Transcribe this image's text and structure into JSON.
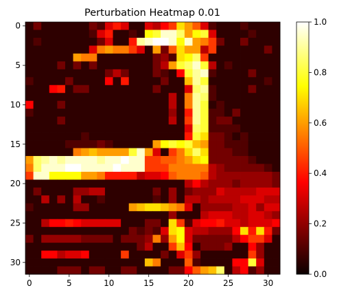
{
  "chart_data": {
    "type": "heatmap",
    "title": "Perturbation Heatmap 0.01",
    "xlabel": "",
    "ylabel": "",
    "rows": 32,
    "cols": 32,
    "x_ticks": [
      0,
      5,
      10,
      15,
      20,
      25,
      30
    ],
    "y_ticks": [
      0,
      5,
      10,
      15,
      20,
      25,
      30
    ],
    "y_axis_direction": "top-to-bottom",
    "colormap": "hot",
    "value_range": [
      0.0,
      1.0
    ],
    "colorbar": {
      "position": "right",
      "ticks": [
        0.0,
        0.2,
        0.4,
        0.6,
        0.8,
        1.0
      ],
      "tick_labels": [
        "0.0",
        "0.2",
        "0.4",
        "0.6",
        "0.8",
        "1.0"
      ]
    },
    "values": [
      [
        0.05,
        0.15,
        0.05,
        0.05,
        0.05,
        0.05,
        0.05,
        0.05,
        0.15,
        0.1,
        0.3,
        0.4,
        0.3,
        0.05,
        0.05,
        0.3,
        0.25,
        0.35,
        0.45,
        0.7,
        0.6,
        0.5,
        0.3,
        0.1,
        0.05,
        0.05,
        0.05,
        0.1,
        0.05,
        0.05,
        0.05,
        0.05
      ],
      [
        0.05,
        0.05,
        0.05,
        0.05,
        0.05,
        0.05,
        0.05,
        0.05,
        0.1,
        0.3,
        0.4,
        0.05,
        0.05,
        0.1,
        0.05,
        0.75,
        0.8,
        0.95,
        0.95,
        0.85,
        0.6,
        0.75,
        0.8,
        0.3,
        0.05,
        0.05,
        0.05,
        0.05,
        0.1,
        0.05,
        0.05,
        0.05
      ],
      [
        0.05,
        0.1,
        0.05,
        0.05,
        0.05,
        0.05,
        0.05,
        0.05,
        0.05,
        0.15,
        0.3,
        0.05,
        0.05,
        0.4,
        0.9,
        0.95,
        1.0,
        1.0,
        0.95,
        0.75,
        0.95,
        0.6,
        0.55,
        0.45,
        0.15,
        0.05,
        0.05,
        0.15,
        0.05,
        0.05,
        0.05,
        0.05
      ],
      [
        0.05,
        0.05,
        0.05,
        0.05,
        0.05,
        0.05,
        0.05,
        0.05,
        0.3,
        0.55,
        0.6,
        0.55,
        0.55,
        0.45,
        0.3,
        0.05,
        0.6,
        0.15,
        0.5,
        0.7,
        0.6,
        0.6,
        0.25,
        0.45,
        0.05,
        0.05,
        0.05,
        0.05,
        0.05,
        0.05,
        0.15,
        0.05
      ],
      [
        0.05,
        0.05,
        0.05,
        0.05,
        0.05,
        0.05,
        0.6,
        0.55,
        0.55,
        0.05,
        0.05,
        0.05,
        0.05,
        0.05,
        0.05,
        0.05,
        0.15,
        0.2,
        0.1,
        0.7,
        0.75,
        0.85,
        0.45,
        0.05,
        0.05,
        0.05,
        0.05,
        0.05,
        0.05,
        0.05,
        0.05,
        0.05
      ],
      [
        0.05,
        0.05,
        0.05,
        0.05,
        0.15,
        0.05,
        0.15,
        0.05,
        0.15,
        0.05,
        0.05,
        0.05,
        0.05,
        0.05,
        0.05,
        0.05,
        0.15,
        0.25,
        0.6,
        0.8,
        0.85,
        0.95,
        0.8,
        0.25,
        0.05,
        0.1,
        0.05,
        0.05,
        0.05,
        0.05,
        0.05,
        0.05
      ],
      [
        0.05,
        0.05,
        0.05,
        0.05,
        0.05,
        0.05,
        0.05,
        0.05,
        0.05,
        0.05,
        0.15,
        0.25,
        0.15,
        0.05,
        0.05,
        0.05,
        0.15,
        0.1,
        0.05,
        0.35,
        0.8,
        0.9,
        0.95,
        0.1,
        0.05,
        0.05,
        0.05,
        0.05,
        0.15,
        0.05,
        0.05,
        0.05
      ],
      [
        0.1,
        0.05,
        0.05,
        0.05,
        0.05,
        0.15,
        0.05,
        0.05,
        0.05,
        0.05,
        0.35,
        0.05,
        0.4,
        0.05,
        0.05,
        0.05,
        0.05,
        0.15,
        0.05,
        0.05,
        0.65,
        0.9,
        0.8,
        0.05,
        0.05,
        0.05,
        0.05,
        0.05,
        0.05,
        0.05,
        0.1,
        0.05
      ],
      [
        0.05,
        0.05,
        0.05,
        0.35,
        0.4,
        0.05,
        0.15,
        0.15,
        0.05,
        0.05,
        0.05,
        0.05,
        0.05,
        0.05,
        0.05,
        0.05,
        0.15,
        0.05,
        0.05,
        0.05,
        0.3,
        0.85,
        0.9,
        0.1,
        0.05,
        0.05,
        0.05,
        0.05,
        0.15,
        0.05,
        0.05,
        0.05
      ],
      [
        0.05,
        0.05,
        0.05,
        0.05,
        0.05,
        0.05,
        0.05,
        0.05,
        0.05,
        0.05,
        0.05,
        0.05,
        0.05,
        0.05,
        0.05,
        0.05,
        0.05,
        0.05,
        0.25,
        0.05,
        0.55,
        0.9,
        0.85,
        0.1,
        0.05,
        0.05,
        0.05,
        0.05,
        0.05,
        0.05,
        0.05,
        0.05
      ],
      [
        0.35,
        0.05,
        0.05,
        0.05,
        0.15,
        0.05,
        0.05,
        0.05,
        0.05,
        0.05,
        0.05,
        0.05,
        0.05,
        0.05,
        0.05,
        0.05,
        0.05,
        0.05,
        0.25,
        0.05,
        0.55,
        0.9,
        0.8,
        0.05,
        0.1,
        0.05,
        0.05,
        0.05,
        0.05,
        0.05,
        0.05,
        0.05
      ],
      [
        0.1,
        0.05,
        0.05,
        0.05,
        0.05,
        0.05,
        0.05,
        0.05,
        0.05,
        0.05,
        0.05,
        0.05,
        0.05,
        0.05,
        0.05,
        0.05,
        0.05,
        0.05,
        0.2,
        0.05,
        0.4,
        0.9,
        0.8,
        0.1,
        0.1,
        0.05,
        0.15,
        0.05,
        0.05,
        0.05,
        0.05,
        0.05
      ],
      [
        0.05,
        0.05,
        0.05,
        0.05,
        0.15,
        0.05,
        0.05,
        0.05,
        0.05,
        0.05,
        0.05,
        0.05,
        0.05,
        0.05,
        0.05,
        0.05,
        0.05,
        0.05,
        0.25,
        0.05,
        0.45,
        0.9,
        0.8,
        0.1,
        0.15,
        0.15,
        0.05,
        0.05,
        0.05,
        0.05,
        0.05,
        0.05
      ],
      [
        0.05,
        0.05,
        0.05,
        0.05,
        0.05,
        0.05,
        0.05,
        0.05,
        0.05,
        0.05,
        0.05,
        0.05,
        0.05,
        0.05,
        0.05,
        0.05,
        0.05,
        0.05,
        0.05,
        0.05,
        0.3,
        0.85,
        0.8,
        0.1,
        0.1,
        0.1,
        0.1,
        0.05,
        0.05,
        0.05,
        0.05,
        0.05
      ],
      [
        0.05,
        0.05,
        0.05,
        0.05,
        0.05,
        0.05,
        0.05,
        0.1,
        0.05,
        0.05,
        0.05,
        0.05,
        0.05,
        0.05,
        0.05,
        0.05,
        0.05,
        0.05,
        0.05,
        0.05,
        0.4,
        0.8,
        0.7,
        0.15,
        0.15,
        0.1,
        0.05,
        0.1,
        0.05,
        0.05,
        0.05,
        0.05
      ],
      [
        0.05,
        0.05,
        0.05,
        0.05,
        0.05,
        0.1,
        0.1,
        0.1,
        0.1,
        0.15,
        0.1,
        0.05,
        0.05,
        0.05,
        0.05,
        0.05,
        0.6,
        0.75,
        0.8,
        0.75,
        0.8,
        0.65,
        0.6,
        0.15,
        0.15,
        0.1,
        0.1,
        0.1,
        0.05,
        0.05,
        0.05,
        0.05
      ],
      [
        0.05,
        0.05,
        0.05,
        0.05,
        0.05,
        0.05,
        0.55,
        0.6,
        0.65,
        0.6,
        0.6,
        0.6,
        0.6,
        0.8,
        0.95,
        0.6,
        0.3,
        0.05,
        0.45,
        0.55,
        0.7,
        0.85,
        0.7,
        0.15,
        0.15,
        0.15,
        0.1,
        0.1,
        0.05,
        0.05,
        0.05,
        0.05
      ],
      [
        0.6,
        0.85,
        0.9,
        0.95,
        0.9,
        0.95,
        0.95,
        0.95,
        0.95,
        0.9,
        0.95,
        0.95,
        1.0,
        0.95,
        0.95,
        0.45,
        0.45,
        0.5,
        0.5,
        0.55,
        0.6,
        0.7,
        0.75,
        0.15,
        0.15,
        0.15,
        0.15,
        0.15,
        0.1,
        0.05,
        0.05,
        0.05
      ],
      [
        0.55,
        0.85,
        0.95,
        0.95,
        0.95,
        1.0,
        1.0,
        0.95,
        0.95,
        0.95,
        0.95,
        1.0,
        0.95,
        0.95,
        0.95,
        0.45,
        0.45,
        0.45,
        0.55,
        0.55,
        0.55,
        0.55,
        0.55,
        0.25,
        0.2,
        0.15,
        0.15,
        0.15,
        0.15,
        0.15,
        0.1,
        0.05
      ],
      [
        0.45,
        0.95,
        0.95,
        0.75,
        0.75,
        0.75,
        0.75,
        0.6,
        0.6,
        0.55,
        0.4,
        0.4,
        0.4,
        0.4,
        0.25,
        0.3,
        0.3,
        0.35,
        0.5,
        0.55,
        0.55,
        0.55,
        0.5,
        0.25,
        0.2,
        0.2,
        0.2,
        0.2,
        0.2,
        0.2,
        0.2,
        0.15
      ],
      [
        0.05,
        0.05,
        0.05,
        0.05,
        0.05,
        0.05,
        0.05,
        0.05,
        0.05,
        0.05,
        0.05,
        0.05,
        0.05,
        0.05,
        0.05,
        0.05,
        0.05,
        0.05,
        0.05,
        0.05,
        0.25,
        0.35,
        0.25,
        0.2,
        0.2,
        0.2,
        0.15,
        0.2,
        0.2,
        0.2,
        0.2,
        0.15
      ],
      [
        0.05,
        0.15,
        0.05,
        0.05,
        0.05,
        0.05,
        0.2,
        0.2,
        0.25,
        0.25,
        0.05,
        0.05,
        0.05,
        0.05,
        0.05,
        0.05,
        0.15,
        0.05,
        0.2,
        0.05,
        0.15,
        0.2,
        0.2,
        0.2,
        0.3,
        0.25,
        0.25,
        0.25,
        0.25,
        0.3,
        0.3,
        0.3
      ],
      [
        0.05,
        0.05,
        0.25,
        0.05,
        0.2,
        0.05,
        0.25,
        0.05,
        0.05,
        0.1,
        0.05,
        0.05,
        0.05,
        0.05,
        0.05,
        0.05,
        0.1,
        0.05,
        0.2,
        0.05,
        0.25,
        0.25,
        0.2,
        0.25,
        0.25,
        0.25,
        0.25,
        0.3,
        0.3,
        0.3,
        0.25,
        0.25
      ],
      [
        0.1,
        0.05,
        0.05,
        0.05,
        0.05,
        0.05,
        0.2,
        0.2,
        0.05,
        0.05,
        0.05,
        0.05,
        0.05,
        0.6,
        0.65,
        0.7,
        0.7,
        0.65,
        0.6,
        0.55,
        0.3,
        0.05,
        0.2,
        0.2,
        0.2,
        0.2,
        0.25,
        0.25,
        0.3,
        0.2,
        0.3,
        0.3
      ],
      [
        0.05,
        0.05,
        0.05,
        0.05,
        0.05,
        0.05,
        0.05,
        0.05,
        0.05,
        0.05,
        0.05,
        0.05,
        0.05,
        0.05,
        0.05,
        0.05,
        0.05,
        0.05,
        0.2,
        0.05,
        0.05,
        0.05,
        0.25,
        0.3,
        0.3,
        0.3,
        0.25,
        0.25,
        0.3,
        0.3,
        0.25,
        0.2
      ],
      [
        0.05,
        0.05,
        0.25,
        0.35,
        0.35,
        0.4,
        0.35,
        0.3,
        0.3,
        0.3,
        0.3,
        0.3,
        0.05,
        0.05,
        0.05,
        0.15,
        0.15,
        0.05,
        0.7,
        0.45,
        0.1,
        0.3,
        0.35,
        0.35,
        0.4,
        0.3,
        0.3,
        0.25,
        0.3,
        0.3,
        0.3,
        0.35
      ],
      [
        0.05,
        0.05,
        0.05,
        0.05,
        0.05,
        0.05,
        0.05,
        0.05,
        0.05,
        0.05,
        0.05,
        0.05,
        0.05,
        0.15,
        0.1,
        0.15,
        0.1,
        0.3,
        0.7,
        0.75,
        0.3,
        0.25,
        0.25,
        0.2,
        0.2,
        0.2,
        0.35,
        0.7,
        0.4,
        0.7,
        0.4,
        0.15
      ],
      [
        0.15,
        0.05,
        0.2,
        0.2,
        0.2,
        0.2,
        0.2,
        0.15,
        0.15,
        0.15,
        0.15,
        0.05,
        0.15,
        0.15,
        0.15,
        0.2,
        0.55,
        0.2,
        0.6,
        0.75,
        0.3,
        0.15,
        0.15,
        0.15,
        0.15,
        0.15,
        0.25,
        0.35,
        0.45,
        0.45,
        0.3,
        0.05
      ],
      [
        0.05,
        0.05,
        0.05,
        0.05,
        0.05,
        0.05,
        0.05,
        0.05,
        0.05,
        0.05,
        0.05,
        0.05,
        0.05,
        0.05,
        0.15,
        0.25,
        0.05,
        0.05,
        0.45,
        0.65,
        0.35,
        0.05,
        0.15,
        0.15,
        0.15,
        0.2,
        0.05,
        0.05,
        0.35,
        0.2,
        0.05,
        0.05
      ],
      [
        0.05,
        0.05,
        0.35,
        0.35,
        0.25,
        0.3,
        0.3,
        0.35,
        0.05,
        0.05,
        0.05,
        0.05,
        0.45,
        0.05,
        0.05,
        0.05,
        0.05,
        0.15,
        0.05,
        0.3,
        0.45,
        0.2,
        0.05,
        0.05,
        0.05,
        0.05,
        0.05,
        0.05,
        0.45,
        0.2,
        0.05,
        0.05
      ],
      [
        0.05,
        0.05,
        0.05,
        0.05,
        0.05,
        0.05,
        0.05,
        0.05,
        0.05,
        0.05,
        0.05,
        0.05,
        0.05,
        0.05,
        0.05,
        0.65,
        0.55,
        0.05,
        0.05,
        0.05,
        0.5,
        0.1,
        0.05,
        0.05,
        0.05,
        0.05,
        0.35,
        0.35,
        0.8,
        0.3,
        0.05,
        0.05
      ],
      [
        0.05,
        0.05,
        0.05,
        0.05,
        0.15,
        0.15,
        0.15,
        0.05,
        0.15,
        0.15,
        0.05,
        0.05,
        0.15,
        0.15,
        0.05,
        0.05,
        0.05,
        0.05,
        0.15,
        0.15,
        0.35,
        0.5,
        0.6,
        0.65,
        0.85,
        0.05,
        0.25,
        0.35,
        0.1,
        0.2,
        0.05,
        0.05
      ]
    ]
  }
}
